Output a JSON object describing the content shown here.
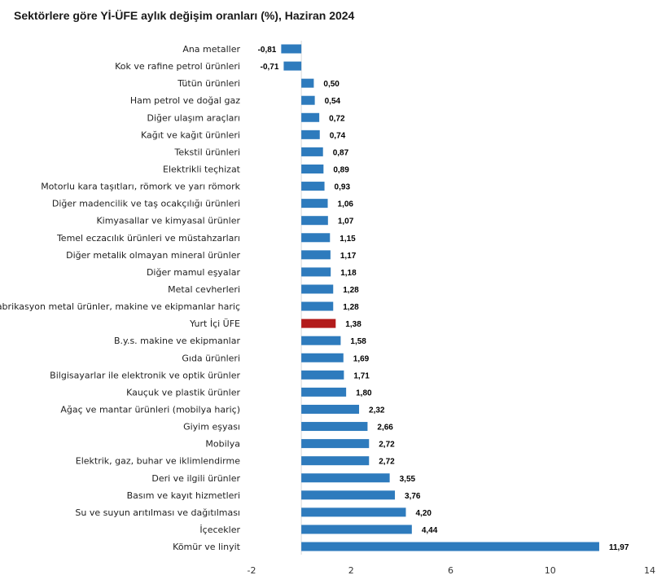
{
  "chart_data": {
    "type": "bar",
    "orientation": "horizontal",
    "title": "Sektörlere göre Yİ-ÜFE aylık değişim oranları (%), Haziran 2024",
    "xlabel": "",
    "ylabel": "",
    "xlim": [
      -2,
      14
    ],
    "xticks": [
      "-2",
      "2",
      "6",
      "10",
      "14"
    ],
    "xtick_values": [
      -2,
      2,
      6,
      10,
      14
    ],
    "grid": false,
    "legend": "none",
    "colors": {
      "bar": "#2e7bbd",
      "highlight": "#b31b1b",
      "axis": "#d9d9d9"
    },
    "highlight_category": "Yurt İçi ÜFE",
    "categories": [
      "Ana metaller",
      "Kok ve rafine petrol ürünleri",
      "Tütün ürünleri",
      "Ham petrol ve doğal gaz",
      "Diğer ulaşım araçları",
      "Kağıt ve kağıt ürünleri",
      "Tekstil ürünleri",
      "Elektrikli teçhizat",
      "Motorlu kara taşıtları, römork ve yarı römork",
      "Diğer madencilik ve taş ocakçılığı ürünleri",
      "Kimyasallar ve kimyasal ürünler",
      "Temel eczacılık ürünleri ve müstahzarları",
      "Diğer metalik olmayan mineral ürünler",
      "Diğer mamul eşyalar",
      "Metal cevherleri",
      "Fabrikasyon metal ürünler, makine ve ekipmanlar hariç",
      "Yurt İçi ÜFE",
      "B.y.s. makine ve ekipmanlar",
      "Gıda ürünleri",
      "Bilgisayarlar ile elektronik ve optik ürünler",
      "Kauçuk ve plastik ürünler",
      "Ağaç ve mantar ürünleri (mobilya hariç)",
      "Giyim eşyası",
      "Mobilya",
      "Elektrik, gaz, buhar ve iklimlendirme",
      "Deri ve ilgili ürünler",
      "Basım ve kayıt hizmetleri",
      "Su ve suyun arıtılması ve dağıtılması",
      "İçecekler",
      "Kömür ve linyit"
    ],
    "values": [
      -0.81,
      -0.71,
      0.5,
      0.54,
      0.72,
      0.74,
      0.87,
      0.89,
      0.93,
      1.06,
      1.07,
      1.15,
      1.17,
      1.18,
      1.28,
      1.28,
      1.38,
      1.58,
      1.69,
      1.71,
      1.8,
      2.32,
      2.66,
      2.72,
      2.72,
      3.55,
      3.76,
      4.2,
      4.44,
      11.97
    ],
    "value_labels": [
      "-0,81",
      "-0,71",
      "0,50",
      "0,54",
      "0,72",
      "0,74",
      "0,87",
      "0,89",
      "0,93",
      "1,06",
      "1,07",
      "1,15",
      "1,17",
      "1,18",
      "1,28",
      "1,28",
      "1,38",
      "1,58",
      "1,69",
      "1,71",
      "1,80",
      "2,32",
      "2,66",
      "2,72",
      "2,72",
      "3,55",
      "3,76",
      "4,20",
      "4,44",
      "11,97"
    ]
  }
}
